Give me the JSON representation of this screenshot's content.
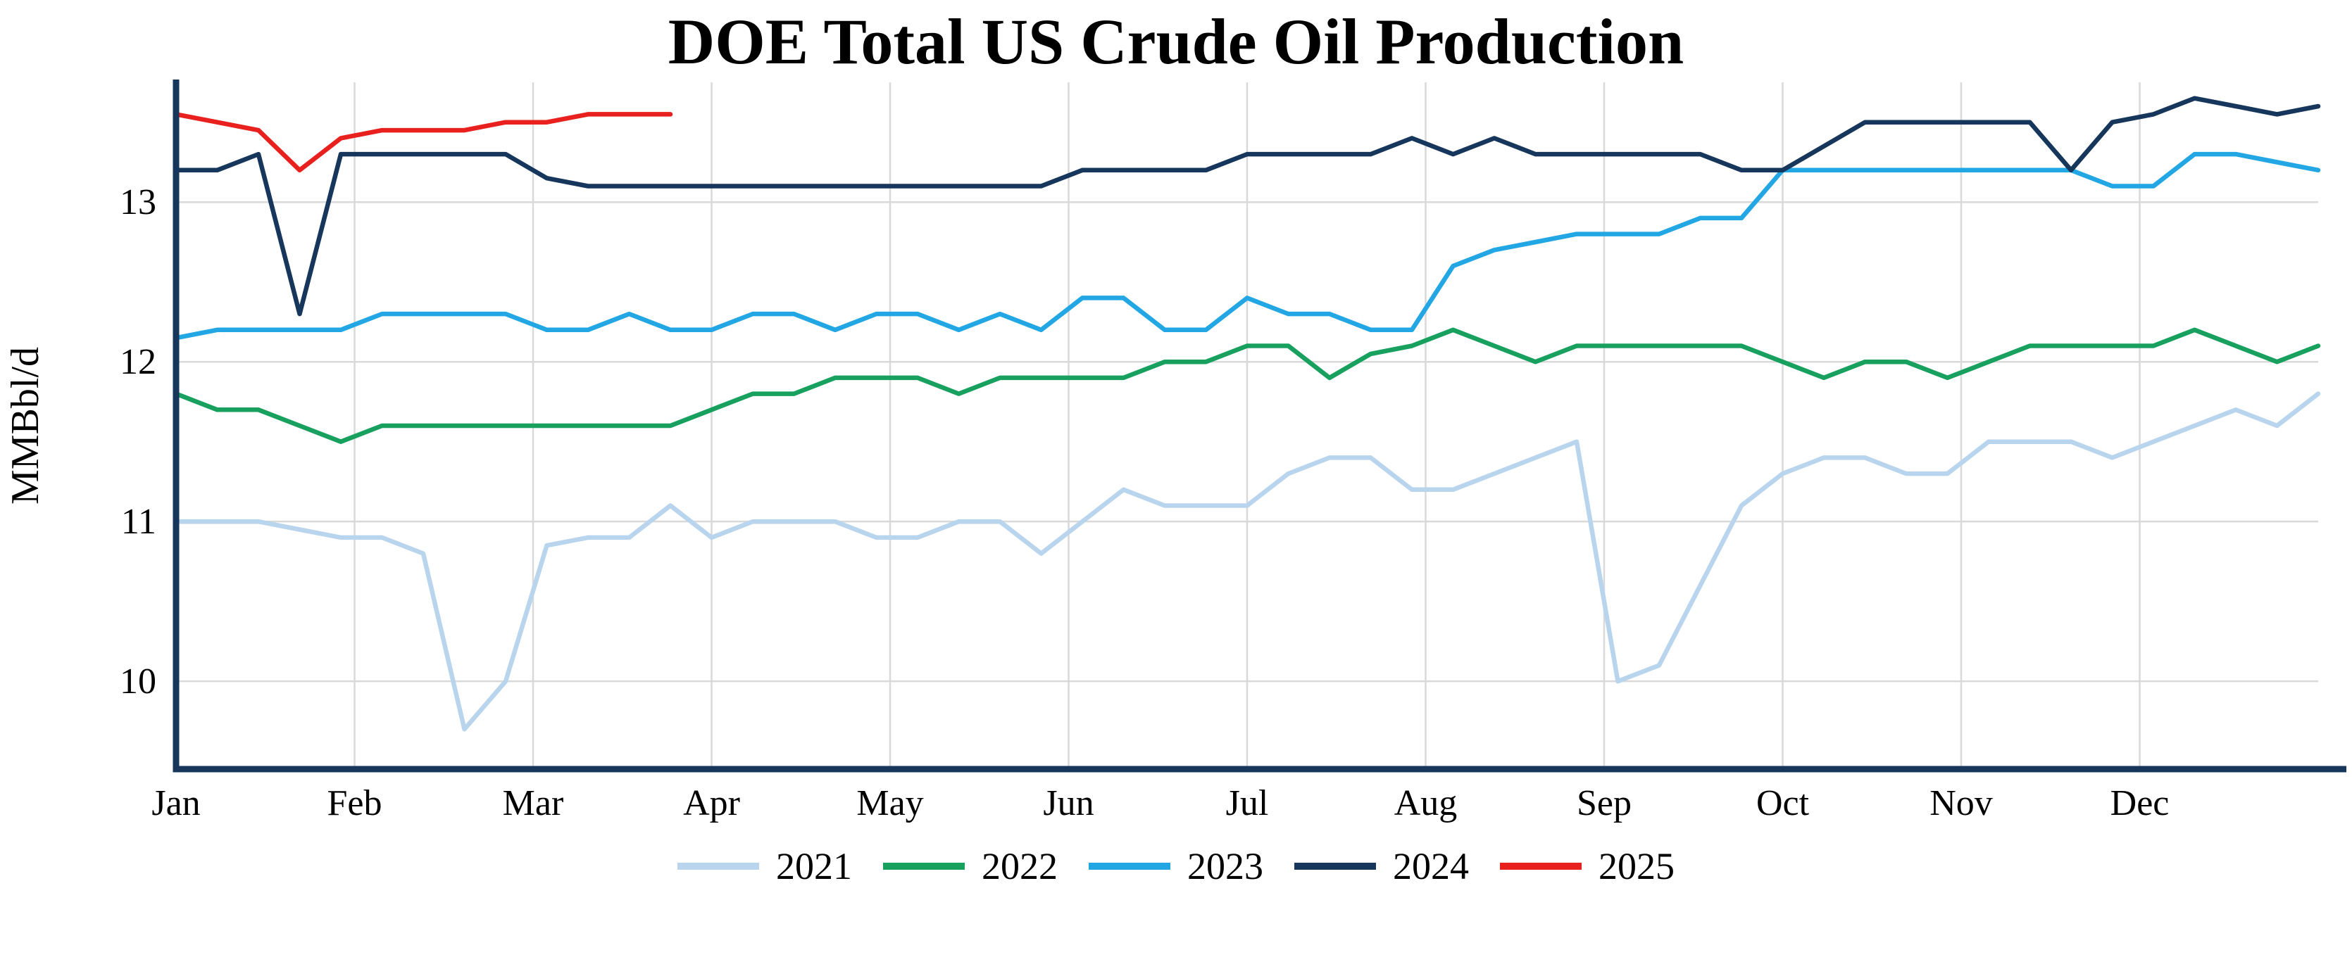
{
  "page": {
    "background": "#ffffff"
  },
  "chart_data": {
    "type": "line",
    "title": "DOE Total US Crude Oil Production",
    "ylabel": "MMBbl/d",
    "xlabel": "",
    "x_unit": "week-of-year",
    "weeks_per_year": 52,
    "x_tick_labels": [
      "Jan",
      "Feb",
      "Mar",
      "Apr",
      "May",
      "Jun",
      "Jul",
      "Aug",
      "Sep",
      "Oct",
      "Nov",
      "Dec"
    ],
    "y_ticks": [
      10,
      11,
      12,
      13
    ],
    "y_tick_labels": [
      "10",
      "11",
      "12",
      "13"
    ],
    "ylim": [
      9.45,
      13.75
    ],
    "grid": true,
    "legend_position": "bottom",
    "axis_color": "#16365c",
    "grid_color": "#d9d9d9",
    "series": [
      {
        "name": "2021",
        "color": "#b9d5ee",
        "values": [
          11.0,
          11.0,
          11.0,
          10.95,
          10.9,
          10.9,
          10.8,
          9.7,
          10.0,
          10.85,
          10.9,
          10.9,
          11.1,
          10.9,
          11.0,
          11.0,
          11.0,
          10.9,
          10.9,
          11.0,
          11.0,
          10.8,
          11.0,
          11.2,
          11.1,
          11.1,
          11.1,
          11.3,
          11.4,
          11.4,
          11.2,
          11.2,
          11.3,
          11.4,
          11.5,
          10.0,
          10.1,
          10.6,
          11.1,
          11.3,
          11.4,
          11.4,
          11.3,
          11.3,
          11.5,
          11.5,
          11.5,
          11.4,
          11.5,
          11.6,
          11.7,
          11.6,
          11.8
        ]
      },
      {
        "name": "2022",
        "color": "#18a05e",
        "values": [
          11.8,
          11.7,
          11.7,
          11.6,
          11.5,
          11.6,
          11.6,
          11.6,
          11.6,
          11.6,
          11.6,
          11.6,
          11.6,
          11.7,
          11.8,
          11.8,
          11.9,
          11.9,
          11.9,
          11.8,
          11.9,
          11.9,
          11.9,
          11.9,
          12.0,
          12.0,
          12.1,
          12.1,
          11.9,
          12.05,
          12.1,
          12.2,
          12.1,
          12.0,
          12.1,
          12.1,
          12.1,
          12.1,
          12.1,
          12.0,
          11.9,
          12.0,
          12.0,
          11.9,
          12.0,
          12.1,
          12.1,
          12.1,
          12.1,
          12.2,
          12.1,
          12.0,
          12.1
        ]
      },
      {
        "name": "2023",
        "color": "#22a7e4",
        "values": [
          12.15,
          12.2,
          12.2,
          12.2,
          12.2,
          12.3,
          12.3,
          12.3,
          12.3,
          12.2,
          12.2,
          12.3,
          12.2,
          12.2,
          12.3,
          12.3,
          12.2,
          12.3,
          12.3,
          12.2,
          12.3,
          12.2,
          12.4,
          12.4,
          12.2,
          12.2,
          12.4,
          12.3,
          12.3,
          12.2,
          12.2,
          12.6,
          12.7,
          12.75,
          12.8,
          12.8,
          12.8,
          12.9,
          12.9,
          13.2,
          13.2,
          13.2,
          13.2,
          13.2,
          13.2,
          13.2,
          13.2,
          13.1,
          13.1,
          13.3,
          13.3,
          13.25,
          13.2
        ]
      },
      {
        "name": "2024",
        "color": "#16365c",
        "values": [
          13.2,
          13.2,
          13.3,
          12.3,
          13.3,
          13.3,
          13.3,
          13.3,
          13.3,
          13.15,
          13.1,
          13.1,
          13.1,
          13.1,
          13.1,
          13.1,
          13.1,
          13.1,
          13.1,
          13.1,
          13.1,
          13.1,
          13.2,
          13.2,
          13.2,
          13.2,
          13.3,
          13.3,
          13.3,
          13.3,
          13.4,
          13.3,
          13.4,
          13.3,
          13.3,
          13.3,
          13.3,
          13.3,
          13.2,
          13.2,
          13.35,
          13.5,
          13.5,
          13.5,
          13.5,
          13.5,
          13.2,
          13.5,
          13.55,
          13.65,
          13.6,
          13.55,
          13.6
        ]
      },
      {
        "name": "2025",
        "color": "#e8201e",
        "values": [
          13.55,
          13.5,
          13.45,
          13.2,
          13.4,
          13.45,
          13.45,
          13.45,
          13.5,
          13.5,
          13.55,
          13.55,
          13.55
        ]
      }
    ]
  }
}
